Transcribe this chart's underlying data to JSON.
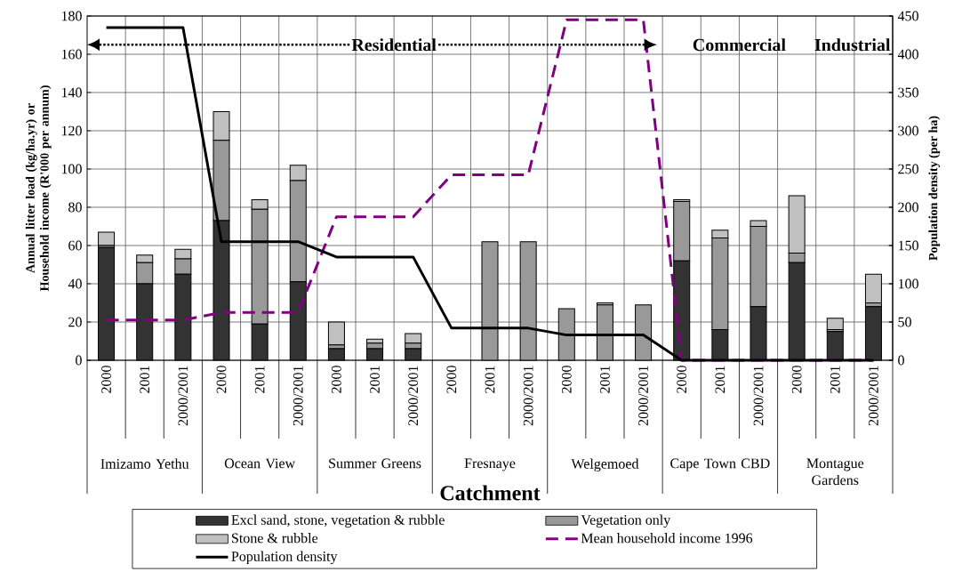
{
  "chart_data": {
    "type": "bar",
    "stacked": true,
    "categories": [
      "2000",
      "2001",
      "2000/2001",
      "2000",
      "2001",
      "2000/2001",
      "2000",
      "2001",
      "2000/2001",
      "2000",
      "2001",
      "2000/2001",
      "2000",
      "2001",
      "2000/2001",
      "2000",
      "2001",
      "2000/2001",
      "2000",
      "2001",
      "2000/2001"
    ],
    "series": [
      {
        "name": "Excl sand, stone, vegetation & rubble",
        "color": "#333333",
        "values": [
          59,
          40,
          45,
          73,
          19,
          41,
          6,
          6,
          6,
          0,
          0,
          0,
          0,
          0,
          0,
          52,
          16,
          28,
          51,
          15,
          28
        ]
      },
      {
        "name": "Vegetation only",
        "color": "#999999",
        "values": [
          1,
          11,
          8,
          42,
          60,
          53,
          2,
          3,
          3,
          0,
          62,
          62,
          27,
          29,
          29,
          31,
          48,
          42,
          5,
          1,
          2
        ]
      },
      {
        "name": "Stone & rubble",
        "color": "#c0c0c0",
        "values": [
          7,
          4,
          5,
          15,
          5,
          8,
          12,
          2,
          5,
          0,
          0,
          0,
          0,
          1,
          0,
          1,
          4,
          3,
          30,
          6,
          15
        ]
      },
      {
        "name": "Mean household income 1996",
        "type": "line",
        "line_style": "dashed",
        "color": "#800080",
        "values": [
          21,
          21,
          21,
          25,
          25,
          25,
          75,
          75,
          75,
          97,
          97,
          97,
          178,
          178,
          178,
          0,
          0,
          0,
          0,
          0,
          0
        ]
      },
      {
        "name": "Population density",
        "type": "line",
        "axis": "y2",
        "line_style": "solid",
        "color": "#000000",
        "values": [
          435,
          435,
          435,
          155,
          155,
          155,
          135,
          135,
          135,
          42,
          42,
          42,
          33,
          33,
          33,
          0,
          0,
          0,
          0,
          0,
          0
        ]
      }
    ],
    "ylim": [
      0,
      180
    ],
    "yticks": [
      0,
      20,
      40,
      60,
      80,
      100,
      120,
      140,
      160,
      180
    ],
    "y2lim": [
      0,
      450
    ],
    "y2ticks": [
      0,
      50,
      100,
      150,
      200,
      250,
      300,
      350,
      400,
      450
    ],
    "xlabel": "Catchment",
    "ylabel": "Annual litter load (kg/ha.yr) or Household income (R'000 per annum)",
    "y2label": "Population density (per ha)",
    "grid": true,
    "legend": "bottom",
    "annotations": [
      "Imizamo Yethu",
      "Ocean View",
      "Summer Greens",
      "Fresnaye",
      "Welgemoed",
      "Cape Town CBD",
      "Montague Gardens",
      "Residential",
      "Commercial",
      "Industrial"
    ]
  }
}
